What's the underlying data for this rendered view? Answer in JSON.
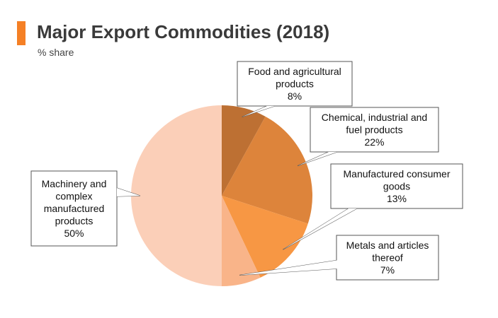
{
  "header": {
    "title": "Major Export Commodities (2018)",
    "subtitle": "% share",
    "accent_color": "#f58025"
  },
  "chart_data": {
    "type": "pie",
    "title": "Major Export Commodities (2018)",
    "subtitle": "% share",
    "start": "12 o'clock, clockwise",
    "slices": [
      {
        "name": "Food and agricultural products",
        "value": 8,
        "label_lines": [
          "Food and agricultural",
          "products",
          "8%"
        ],
        "color": "#bd7033"
      },
      {
        "name": "Chemical, industrial and fuel products",
        "value": 22,
        "label_lines": [
          "Chemical, industrial and",
          "fuel products",
          "22%"
        ],
        "color": "#dd843b"
      },
      {
        "name": "Manufactured consumer goods",
        "value": 13,
        "label_lines": [
          "Manufactured consumer",
          "goods",
          "13%"
        ],
        "color": "#f79744"
      },
      {
        "name": "Metals and articles thereof",
        "value": 7,
        "label_lines": [
          "Metals and articles",
          "thereof",
          "7%"
        ],
        "color": "#f9b489"
      },
      {
        "name": "Machinery and complex manufactured products",
        "value": 50,
        "label_lines": [
          "Machinery and",
          "complex",
          "manufactured",
          "products",
          "50%"
        ],
        "color": "#fbcfb8"
      }
    ]
  }
}
